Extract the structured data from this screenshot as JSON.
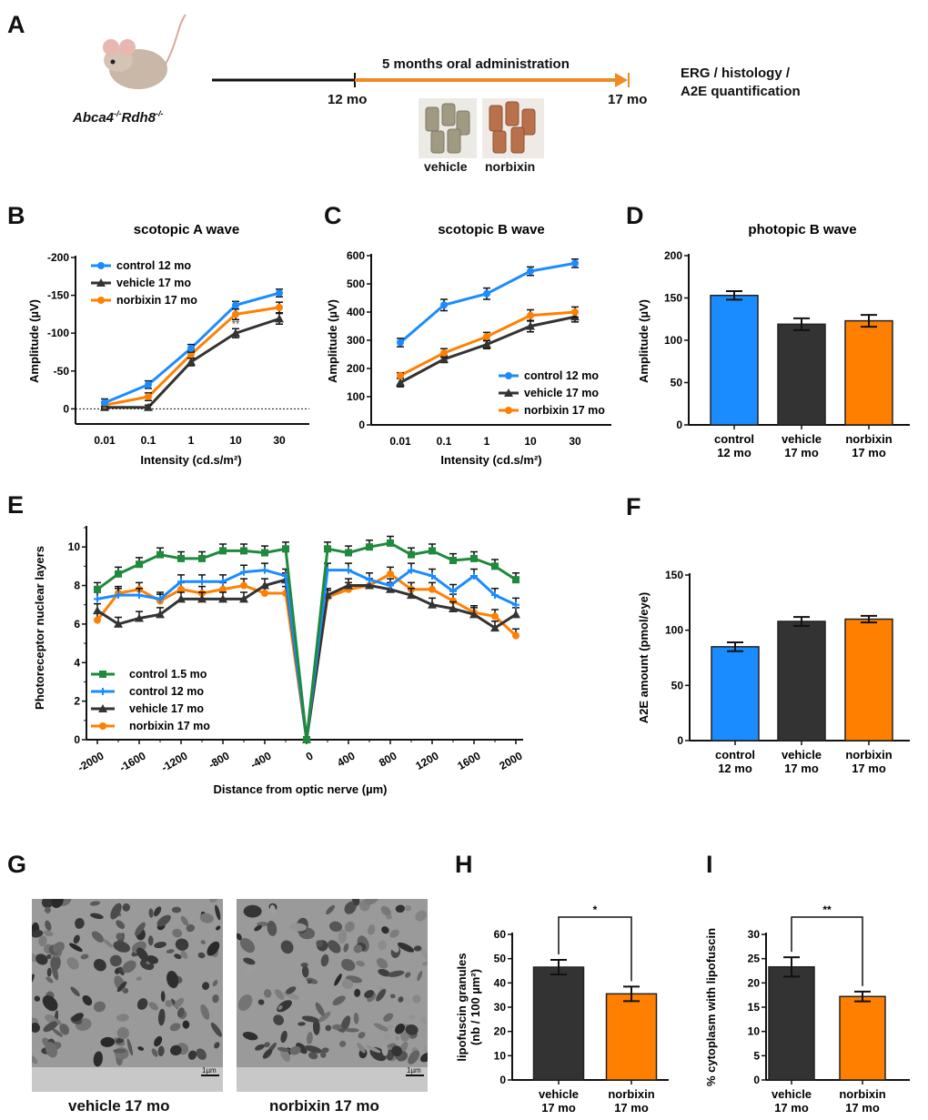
{
  "panels": {
    "a": "A",
    "b": "B",
    "c": "C",
    "d": "D",
    "e": "E",
    "f": "F",
    "g": "G",
    "h": "H",
    "i": "I"
  },
  "schema": {
    "mouse_label": "Abca4",
    "mouse_sup1": "-/-",
    "mouse_label2": "Rdh8",
    "mouse_sup2": "-/-",
    "treatment": "5 months oral administration",
    "start": "12 mo",
    "end": "17 mo",
    "readout_line1": "ERG / histology /",
    "readout_line2": "A2E quantification",
    "pellet_vehicle": "vehicle",
    "pellet_norbixin": "norbixin"
  },
  "micrographs": {
    "left_caption": "vehicle 17 mo",
    "right_caption": "norbixin 17 mo",
    "scale_bar": "1µm"
  },
  "colors": {
    "control12": "#1a8cff",
    "vehicle": "#333333",
    "norbixin": "#ff8000",
    "control15": "#1e8a3c"
  },
  "chart_data": [
    {
      "type": "line",
      "title": "scotopic A wave",
      "xlabel": "Intensity (cd.s/m²)",
      "ylabel": "Amplitude (µV)",
      "categories": [
        "0.01",
        "0.1",
        "1",
        "10",
        "30"
      ],
      "ylim": [
        20,
        -200
      ],
      "yticks": [
        -200,
        -150,
        -100,
        -50,
        0
      ],
      "zero_line": true,
      "legend": "top-left",
      "series": [
        {
          "name": "control 12 mo",
          "color": "#1a8cff",
          "marker": "circle",
          "values": [
            -8,
            -32,
            -80,
            -137,
            -153
          ],
          "err": [
            5,
            5,
            5,
            5,
            5
          ]
        },
        {
          "name": "vehicle 17 mo",
          "color": "#333333",
          "marker": "triangle",
          "values": [
            -2,
            -2,
            -62,
            -100,
            -119
          ],
          "err": [
            3,
            3,
            5,
            6,
            7
          ]
        },
        {
          "name": "norbixin 17 mo",
          "color": "#ff8000",
          "marker": "circle",
          "values": [
            -5,
            -16,
            -72,
            -125,
            -134
          ],
          "err": [
            4,
            5,
            5,
            7,
            7
          ]
        }
      ],
      "annotations": [
        {
          "category": "10",
          "text": "**"
        }
      ]
    },
    {
      "type": "line",
      "title": "scotopic B wave",
      "xlabel": "Intensity (cd.s/m²)",
      "ylabel": "Amplitude (µV)",
      "categories": [
        "0.01",
        "0.1",
        "1",
        "10",
        "30"
      ],
      "ylim": [
        0,
        600
      ],
      "yticks": [
        0,
        100,
        200,
        300,
        400,
        500,
        600
      ],
      "legend": "bottom-right",
      "series": [
        {
          "name": "control 12 mo",
          "color": "#1a8cff",
          "marker": "circle",
          "values": [
            292,
            425,
            465,
            545,
            573
          ],
          "err": [
            15,
            20,
            20,
            15,
            15
          ]
        },
        {
          "name": "vehicle 17 mo",
          "color": "#333333",
          "marker": "triangle",
          "values": [
            150,
            233,
            285,
            350,
            383
          ],
          "err": [
            15,
            12,
            15,
            20,
            18
          ]
        },
        {
          "name": "norbixin 17 mo",
          "color": "#ff8000",
          "marker": "circle",
          "values": [
            175,
            255,
            313,
            388,
            400
          ],
          "err": [
            10,
            15,
            15,
            20,
            18
          ]
        }
      ]
    },
    {
      "type": "bar",
      "title": "photopic B wave",
      "ylabel": "Amplitude (µV)",
      "ylim": [
        0,
        200
      ],
      "yticks": [
        0,
        50,
        100,
        150,
        200
      ],
      "categories": [
        [
          "control",
          "12 mo"
        ],
        [
          "vehicle",
          "17 mo"
        ],
        [
          "norbixin",
          "17 mo"
        ]
      ],
      "values": [
        153,
        119,
        123
      ],
      "err": [
        5,
        7,
        7
      ],
      "colors": [
        "#1a8cff",
        "#333333",
        "#ff8000"
      ]
    },
    {
      "type": "line",
      "xlabel": "Distance from optic nerve (µm)",
      "ylabel": "Photoreceptor nuclear layers",
      "x": [
        -2000,
        -1800,
        -1600,
        -1400,
        -1200,
        -1000,
        -800,
        -600,
        -400,
        -200,
        0,
        200,
        400,
        600,
        800,
        1000,
        1200,
        1400,
        1600,
        1800,
        2000
      ],
      "xticks": [
        -2000,
        -1600,
        -1200,
        -800,
        -400,
        0,
        400,
        800,
        1200,
        1600,
        2000
      ],
      "ylim": [
        0,
        11
      ],
      "yticks": [
        0,
        2,
        4,
        6,
        8,
        10
      ],
      "legend": "bottom-left",
      "series": [
        {
          "name": "control 1.5 mo",
          "color": "#1e8a3c",
          "marker": "square",
          "values": [
            7.8,
            8.6,
            9.1,
            9.6,
            9.4,
            9.4,
            9.8,
            9.8,
            9.7,
            9.9,
            0,
            9.9,
            9.7,
            10.0,
            10.2,
            9.6,
            9.8,
            9.3,
            9.4,
            9.0,
            8.3
          ]
        },
        {
          "name": "control 12 mo",
          "color": "#1a8cff",
          "marker": "plus",
          "values": [
            7.3,
            7.5,
            7.5,
            7.3,
            8.2,
            8.2,
            8.2,
            8.7,
            8.8,
            8.5,
            0,
            8.8,
            8.8,
            8.3,
            8.0,
            8.8,
            8.5,
            7.7,
            8.5,
            7.5,
            7.0
          ]
        },
        {
          "name": "vehicle 17 mo",
          "color": "#333333",
          "marker": "triangle",
          "values": [
            6.7,
            6.0,
            6.3,
            6.5,
            7.3,
            7.3,
            7.3,
            7.3,
            8.0,
            8.3,
            0,
            7.5,
            8.0,
            8.0,
            7.8,
            7.5,
            7.0,
            6.8,
            6.5,
            5.8,
            6.5
          ]
        },
        {
          "name": "norbixin 17 mo",
          "color": "#ff8000",
          "marker": "circle",
          "values": [
            6.2,
            7.6,
            7.8,
            7.2,
            7.8,
            7.6,
            7.8,
            8.0,
            7.6,
            7.6,
            0,
            7.4,
            7.8,
            8.0,
            8.6,
            7.8,
            7.8,
            7.2,
            6.6,
            6.4,
            5.4
          ]
        }
      ]
    },
    {
      "type": "bar",
      "ylabel": "A2E amount (pmol/eye)",
      "ylim": [
        0,
        150
      ],
      "yticks": [
        0,
        50,
        100,
        150
      ],
      "categories": [
        [
          "control",
          "12 mo"
        ],
        [
          "vehicle",
          "17 mo"
        ],
        [
          "norbixin",
          "17 mo"
        ]
      ],
      "values": [
        85,
        108,
        110
      ],
      "err": [
        4,
        4,
        3
      ],
      "colors": [
        "#1a8cff",
        "#333333",
        "#ff8000"
      ]
    },
    {
      "type": "bar",
      "ylabel": "lipofuscin granules",
      "ylabel2": "(nb / 100 µm²)",
      "ylim": [
        0,
        60
      ],
      "yticks": [
        0,
        10,
        20,
        30,
        40,
        50,
        60
      ],
      "categories": [
        [
          "vehicle",
          "17 mo"
        ],
        [
          "norbixin",
          "17 mo"
        ]
      ],
      "values": [
        46.5,
        35.5
      ],
      "err": [
        3,
        3
      ],
      "colors": [
        "#333333",
        "#ff8000"
      ],
      "significance": "*"
    },
    {
      "type": "bar",
      "ylabel": "% cytoplasm with lipofuscin",
      "ylim": [
        0,
        30
      ],
      "yticks": [
        0,
        5,
        10,
        15,
        20,
        25,
        30
      ],
      "categories": [
        [
          "vehicle",
          "17 mo"
        ],
        [
          "norbixin",
          "17 mo"
        ]
      ],
      "values": [
        23.3,
        17.2
      ],
      "err": [
        2,
        1
      ],
      "colors": [
        "#333333",
        "#ff8000"
      ],
      "significance": "**"
    }
  ]
}
